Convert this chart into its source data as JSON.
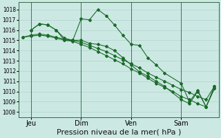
{
  "background_color": "#cce8e2",
  "grid_color": "#aacccc",
  "line_color": "#1a6b2a",
  "marker_color": "#1a6b2a",
  "xlabel": "Pression niveau de la mer( hPa )",
  "xlabel_fontsize": 8,
  "ylim": [
    1007.5,
    1018.7
  ],
  "yticks": [
    1008,
    1009,
    1010,
    1011,
    1012,
    1013,
    1014,
    1015,
    1016,
    1017,
    1018
  ],
  "ytick_fontsize": 5.5,
  "xtick_labels": [
    "Jeu",
    "Dim",
    "Ven",
    "Sam"
  ],
  "xtick_positions": [
    6,
    30,
    54,
    78
  ],
  "xlim": [
    0,
    96
  ],
  "series1_x": [
    6,
    10,
    14,
    18,
    22,
    26,
    30,
    34,
    38,
    42,
    46,
    50,
    54,
    58,
    62,
    66,
    70,
    78,
    82,
    86,
    90,
    94
  ],
  "series1_y": [
    1016.0,
    1016.6,
    1016.5,
    1016.0,
    1015.0,
    1015.0,
    1017.1,
    1017.0,
    1018.0,
    1017.4,
    1016.5,
    1015.5,
    1014.6,
    1014.5,
    1013.3,
    1012.6,
    1011.8,
    1010.8,
    1009.0,
    1010.1,
    1008.5,
    1010.3
  ],
  "series2_x": [
    6,
    10,
    14,
    18,
    22,
    26,
    30,
    34,
    38,
    42,
    46,
    50,
    54,
    58,
    62,
    66,
    70,
    78,
    82,
    86,
    90,
    94
  ],
  "series2_y": [
    1016.0,
    1016.6,
    1016.5,
    1016.0,
    1015.2,
    1015.0,
    1015.0,
    1014.7,
    1014.6,
    1014.4,
    1014.0,
    1013.3,
    1012.6,
    1011.9,
    1011.5,
    1011.0,
    1010.5,
    1009.2,
    1008.8,
    1010.0,
    1008.5,
    1010.3
  ],
  "series3_x": [
    2,
    6,
    10,
    14,
    18,
    22,
    26,
    30,
    34,
    38,
    42,
    46,
    50,
    54,
    58,
    62,
    66,
    70,
    74,
    78,
    82,
    86,
    90,
    94
  ],
  "series3_y": [
    1015.3,
    1015.5,
    1015.6,
    1015.5,
    1015.3,
    1015.1,
    1015.0,
    1014.8,
    1014.5,
    1014.2,
    1013.9,
    1013.5,
    1013.1,
    1012.7,
    1012.3,
    1011.8,
    1011.4,
    1011.0,
    1010.6,
    1010.2,
    1009.9,
    1009.5,
    1009.2,
    1010.5
  ],
  "series4_x": [
    2,
    6,
    10,
    14,
    18,
    22,
    26,
    30,
    34,
    38,
    42,
    46,
    50,
    54,
    58,
    62,
    66,
    70,
    74,
    78,
    82,
    86,
    90,
    94
  ],
  "series4_y": [
    1015.3,
    1015.4,
    1015.5,
    1015.4,
    1015.2,
    1015.0,
    1014.9,
    1014.6,
    1014.3,
    1013.9,
    1013.5,
    1013.1,
    1012.7,
    1012.2,
    1011.8,
    1011.3,
    1010.8,
    1010.4,
    1010.0,
    1009.5,
    1009.2,
    1008.8,
    1008.5,
    1010.5
  ]
}
